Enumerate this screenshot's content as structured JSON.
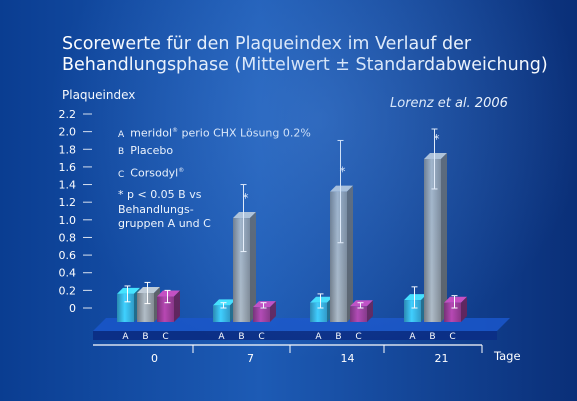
{
  "chart_data": {
    "type": "bar",
    "title_line1": "Scorewerte für den Plaqueindex im Verlauf der",
    "title_line2": "Behandlungsphase (Mittelwert ± Standardabweichung)",
    "ylabel": "Plaqueindex",
    "xlabel": "Tage",
    "citation": "Lorenz et al. 2006",
    "ylim": [
      0,
      2.2
    ],
    "yticks": [
      "0",
      "0.2",
      "0.4",
      "0.6",
      "0.8",
      "1.0",
      "1.2",
      "1.4",
      "1.6",
      "1.8",
      "2.0",
      "2.2"
    ],
    "categories": [
      "0",
      "7",
      "14",
      "21"
    ],
    "group_letters": [
      "A",
      "B",
      "C"
    ],
    "series": [
      {
        "key": "A",
        "label": "meridol® perio CHX Lösung 0.2%",
        "color": "#37b6ea",
        "values": [
          0.16,
          0.03,
          0.06,
          0.09
        ],
        "err": [
          0.09,
          0.03,
          0.1,
          0.15
        ]
      },
      {
        "key": "B",
        "label": "Placebo",
        "color": "#9aa4ad",
        "values": [
          0.17,
          1.02,
          1.32,
          1.69
        ],
        "err": [
          0.12,
          0.38,
          0.58,
          0.34
        ]
      },
      {
        "key": "C",
        "label": "Corsodyl®",
        "color": "#a03e9c",
        "values": [
          0.13,
          0.01,
          0.02,
          0.06
        ],
        "err": [
          0.07,
          0.05,
          0.04,
          0.08
        ]
      }
    ],
    "significance_marks": [
      {
        "category": "7",
        "series": "B",
        "label": "*"
      },
      {
        "category": "14",
        "series": "B",
        "label": "*"
      },
      {
        "category": "21",
        "series": "B",
        "label": "*"
      }
    ],
    "legend": {
      "position": "top-left",
      "items": [
        {
          "key": "A",
          "label": "meridol",
          "suffix": " perio CHX Lösung 0.2%",
          "sup": "®"
        },
        {
          "key": "B",
          "label": "Placebo",
          "suffix": "",
          "sup": ""
        },
        {
          "key": "C",
          "label": "Corsodyl",
          "suffix": "",
          "sup": "®"
        }
      ]
    },
    "note_lines": [
      "* p < 0.05 B vs",
      "Behandlungs-",
      "gruppen A und C"
    ],
    "grid": false
  }
}
